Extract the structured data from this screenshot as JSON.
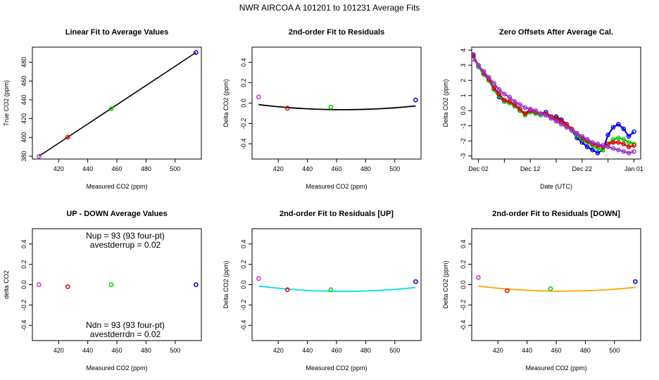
{
  "suptitle": "NWR    AIRCOA A    101201 to 101231    Average Fits",
  "chart_data": [
    {
      "type": "scatter",
      "title": "Linear Fit to Average Values",
      "xlabel": "Measured CO2 (ppm)",
      "ylabel": "True CO2 (ppm)",
      "xlim": [
        402,
        518
      ],
      "ylim": [
        377,
        496
      ],
      "xticks": [
        420,
        440,
        460,
        480,
        500
      ],
      "yticks": [
        380,
        400,
        420,
        440,
        460,
        480
      ],
      "points": [
        {
          "x": 406.5,
          "y": 380.0,
          "color": "#cc33cc"
        },
        {
          "x": 426.3,
          "y": 400.3,
          "color": "#e00000"
        },
        {
          "x": 456.1,
          "y": 430.5,
          "color": "#00cc00"
        },
        {
          "x": 514.3,
          "y": 490.3,
          "color": "#0000cc"
        }
      ],
      "fit_line": {
        "x": [
          406.5,
          514.3
        ],
        "y": [
          380.0,
          490.3
        ],
        "color": "#000000"
      }
    },
    {
      "type": "scatter",
      "title": "2nd-order Fit to Residuals",
      "xlabel": "Measured CO2 (ppm)",
      "ylabel": "Delta CO2 (ppm)",
      "xlim": [
        402,
        518
      ],
      "ylim": [
        -0.55,
        0.55
      ],
      "xticks": [
        420,
        440,
        460,
        480,
        500
      ],
      "yticks": [
        -0.4,
        -0.2,
        0.0,
        0.2,
        0.4
      ],
      "points": [
        {
          "x": 406.5,
          "y": 0.06,
          "color": "#cc33cc"
        },
        {
          "x": 426.3,
          "y": -0.05,
          "color": "#e00000"
        },
        {
          "x": 456.1,
          "y": -0.04,
          "color": "#00cc00"
        },
        {
          "x": 514.3,
          "y": 0.03,
          "color": "#0000cc"
        }
      ],
      "fit_curve": {
        "coeffs": [
          1.48e-05,
          464.4,
          -0.0648
        ],
        "color": "#000000"
      }
    },
    {
      "type": "scatter",
      "title": "Zero Offsets After Average Cal.",
      "xlabel": "Date (UTC)",
      "ylabel": "Delta CO2 (ppm)",
      "xlim": [
        -0.3,
        32.3
      ],
      "ylim": [
        -3.2,
        4.2
      ],
      "xticks": [
        {
          "value": 1,
          "label": "Dec 02"
        },
        {
          "value": 11,
          "label": "Dec 12"
        },
        {
          "value": 21,
          "label": "Dec 22"
        },
        {
          "value": 31,
          "label": "Jan 01"
        }
      ],
      "minor_xticks": [
        6,
        16,
        26
      ],
      "yticks": [
        -3,
        -2,
        -1,
        0,
        1,
        2,
        3,
        4
      ],
      "series": [
        {
          "name": "blue",
          "color": "#0000dd",
          "offset": 0.0,
          "x": [
            0,
            1,
            2,
            3,
            4,
            5,
            6,
            7,
            8,
            9,
            10,
            11,
            12,
            13,
            14,
            15,
            16,
            17,
            18,
            19,
            20,
            21,
            22,
            23,
            24,
            25,
            26,
            27,
            28,
            29,
            30,
            31
          ],
          "y": [
            3.7,
            2.9,
            2.4,
            2.0,
            1.4,
            0.9,
            0.6,
            0.6,
            0.3,
            0.0,
            -0.2,
            0.1,
            -0.1,
            -0.2,
            -0.1,
            -0.4,
            -0.4,
            -0.6,
            -0.9,
            -1.3,
            -1.8,
            -2.1,
            -2.4,
            -2.6,
            -2.8,
            -2.6,
            -1.6,
            -1.1,
            -0.9,
            -1.2,
            -1.7,
            -1.4
          ]
        },
        {
          "name": "green",
          "color": "#00cc00",
          "offset": 0.0,
          "x": [
            0,
            1,
            2,
            3,
            4,
            5,
            6,
            7,
            8,
            9,
            10,
            11,
            12,
            13,
            14,
            15,
            16,
            17,
            18,
            19,
            20,
            21,
            22,
            23,
            24,
            25,
            26,
            27,
            28,
            29,
            30,
            31
          ],
          "y": [
            3.6,
            2.9,
            2.4,
            2.0,
            1.4,
            1.0,
            0.6,
            0.5,
            0.3,
            0.0,
            -0.3,
            -0.1,
            -0.2,
            -0.3,
            -0.3,
            -0.5,
            -0.6,
            -0.8,
            -1.0,
            -1.3,
            -1.6,
            -1.9,
            -2.1,
            -2.3,
            -2.5,
            -2.6,
            -2.2,
            -1.9,
            -1.8,
            -1.9,
            -2.1,
            -2.2
          ]
        },
        {
          "name": "red",
          "color": "#dd0000",
          "offset": 0.0,
          "x": [
            0,
            1,
            2,
            3,
            4,
            5,
            6,
            7,
            8,
            9,
            10,
            11,
            12,
            13,
            14,
            15,
            16,
            17,
            18,
            19,
            20,
            21,
            22,
            23,
            24,
            25,
            26,
            27,
            28,
            29,
            30,
            31
          ],
          "y": [
            3.6,
            3.0,
            2.5,
            2.1,
            1.5,
            1.1,
            0.7,
            0.6,
            0.4,
            0.1,
            -0.2,
            0.0,
            -0.1,
            -0.2,
            -0.2,
            -0.4,
            -0.5,
            -0.7,
            -0.9,
            -1.2,
            -1.5,
            -1.8,
            -2.0,
            -2.2,
            -2.3,
            -2.4,
            -2.2,
            -2.1,
            -2.1,
            -2.2,
            -2.4,
            -2.3
          ]
        },
        {
          "name": "purple",
          "color": "#9933cc",
          "offset": 0.0,
          "x": [
            0,
            1,
            2,
            3,
            4,
            5,
            6,
            7,
            8,
            9,
            10,
            11,
            12,
            13,
            14,
            15,
            16,
            17,
            18,
            19,
            20,
            21,
            22,
            23,
            24,
            25,
            26,
            27,
            28,
            29,
            30,
            31
          ],
          "y": [
            3.4,
            3.0,
            2.6,
            2.2,
            1.8,
            1.4,
            1.1,
            0.9,
            0.6,
            0.4,
            0.2,
            0.1,
            0.0,
            -0.2,
            -0.3,
            -0.5,
            -0.7,
            -0.9,
            -1.1,
            -1.3,
            -1.5,
            -1.7,
            -1.9,
            -2.1,
            -2.2,
            -2.3,
            -2.4,
            -2.5,
            -2.6,
            -2.7,
            -2.8,
            -2.7
          ]
        }
      ]
    },
    {
      "type": "scatter",
      "title": "UP - DOWN Average Values",
      "xlabel": "Measured CO2 (ppm)",
      "ylabel": "delta CO2",
      "xlim": [
        402,
        518
      ],
      "ylim": [
        -0.55,
        0.55
      ],
      "xticks": [
        420,
        440,
        460,
        480,
        500
      ],
      "yticks": [
        -0.4,
        -0.2,
        0.0,
        0.2,
        0.4
      ],
      "points": [
        {
          "x": 406.5,
          "y": 0.0,
          "color": "#cc33cc"
        },
        {
          "x": 426.3,
          "y": -0.02,
          "color": "#e00000"
        },
        {
          "x": 456.1,
          "y": 0.0,
          "color": "#00cc00"
        },
        {
          "x": 514.3,
          "y": 0.0,
          "color": "#0000cc"
        }
      ],
      "annotations": {
        "up_line1": "Nup = 93 (93 four-pt)",
        "up_line2": "avestderrup =  0.02",
        "dn_line1": "Ndn = 93 (93 four-pt)",
        "dn_line2": "avestderrdn =  0.02"
      }
    },
    {
      "type": "scatter",
      "title": "2nd-order Fit to Residuals [UP]",
      "xlabel": "Measured CO2 (ppm)",
      "ylabel": "Delta CO2 (ppm)",
      "xlim": [
        402,
        518
      ],
      "ylim": [
        -0.55,
        0.55
      ],
      "xticks": [
        420,
        440,
        460,
        480,
        500
      ],
      "yticks": [
        -0.4,
        -0.2,
        0.0,
        0.2,
        0.4
      ],
      "points": [
        {
          "x": 406.5,
          "y": 0.06,
          "color": "#cc33cc"
        },
        {
          "x": 426.3,
          "y": -0.05,
          "color": "#e00000"
        },
        {
          "x": 456.1,
          "y": -0.05,
          "color": "#00cc00"
        },
        {
          "x": 514.3,
          "y": 0.03,
          "color": "#0000cc"
        }
      ],
      "fit_curve": {
        "coeffs": [
          1.55e-05,
          464.6,
          -0.066
        ],
        "color": "#00e0e0"
      }
    },
    {
      "type": "scatter",
      "title": "2nd-order Fit to Residuals [DOWN]",
      "xlabel": "Measured CO2 (ppm)",
      "ylabel": "Delta CO2 (ppm)",
      "xlim": [
        402,
        518
      ],
      "ylim": [
        -0.55,
        0.55
      ],
      "xticks": [
        420,
        440,
        460,
        480,
        500
      ],
      "yticks": [
        -0.4,
        -0.2,
        0.0,
        0.2,
        0.4
      ],
      "points": [
        {
          "x": 406.5,
          "y": 0.07,
          "color": "#cc33cc"
        },
        {
          "x": 426.3,
          "y": -0.06,
          "color": "#e00000"
        },
        {
          "x": 456.1,
          "y": -0.04,
          "color": "#00cc00"
        },
        {
          "x": 514.3,
          "y": 0.03,
          "color": "#0000cc"
        }
      ],
      "fit_curve": {
        "coeffs": [
          1.5e-05,
          464.2,
          -0.064
        ],
        "color": "#ffa500"
      }
    }
  ]
}
